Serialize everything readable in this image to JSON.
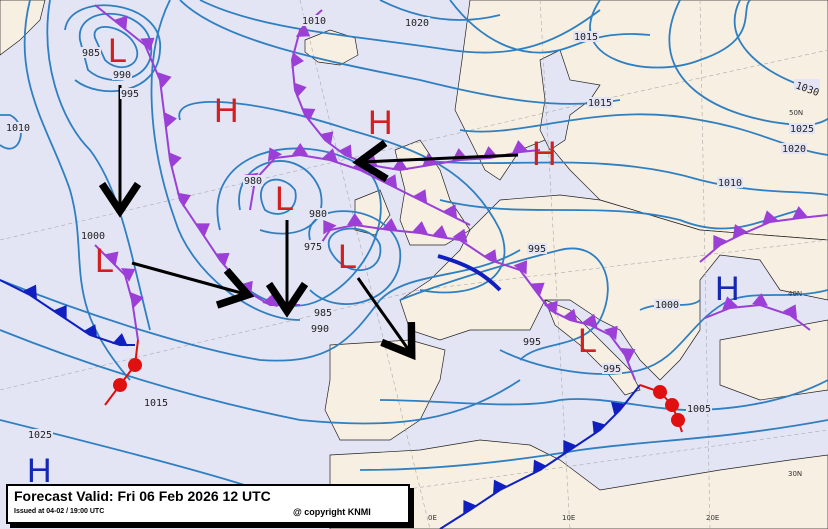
{
  "map": {
    "colors": {
      "sea": "#e3e5f5",
      "land": "#f7efe2",
      "isobar": "#2f7fc1",
      "occluded": "#9b3fd6",
      "cold": "#1020c0",
      "warm": "#e01010",
      "low": "#d21f1f",
      "high_red": "#d21f1f",
      "high_blue": "#1428b4",
      "arrow": "#000000"
    },
    "pressure_centers": [
      {
        "type": "L",
        "color": "red"
      },
      {
        "type": "L",
        "color": "red"
      },
      {
        "type": "L",
        "color": "red"
      },
      {
        "type": "L",
        "color": "red"
      },
      {
        "type": "L",
        "color": "red"
      },
      {
        "type": "H",
        "color": "red"
      },
      {
        "type": "H",
        "color": "red"
      },
      {
        "type": "H",
        "color": "red"
      },
      {
        "type": "H",
        "color": "blue"
      },
      {
        "type": "H",
        "color": "blue"
      }
    ],
    "isobar_labels": [
      "985",
      "990",
      "995",
      "1010",
      "1010",
      "1020",
      "1015",
      "1015",
      "1025",
      "1020",
      "1030",
      "1010",
      "980",
      "980",
      "975",
      "1000",
      "985",
      "990",
      "995",
      "995",
      "995",
      "1000",
      "1005",
      "1015",
      "1025"
    ],
    "grid_labels": [
      "50N",
      "40N",
      "30N",
      "0E",
      "10E",
      "20E"
    ]
  },
  "caption": {
    "title": "Forecast Valid:  Fri 06 Feb 2026 12 UTC",
    "issued": "Issued at 04-02 / 19:00 UTC",
    "copyright": "@ copyright KNMI"
  }
}
